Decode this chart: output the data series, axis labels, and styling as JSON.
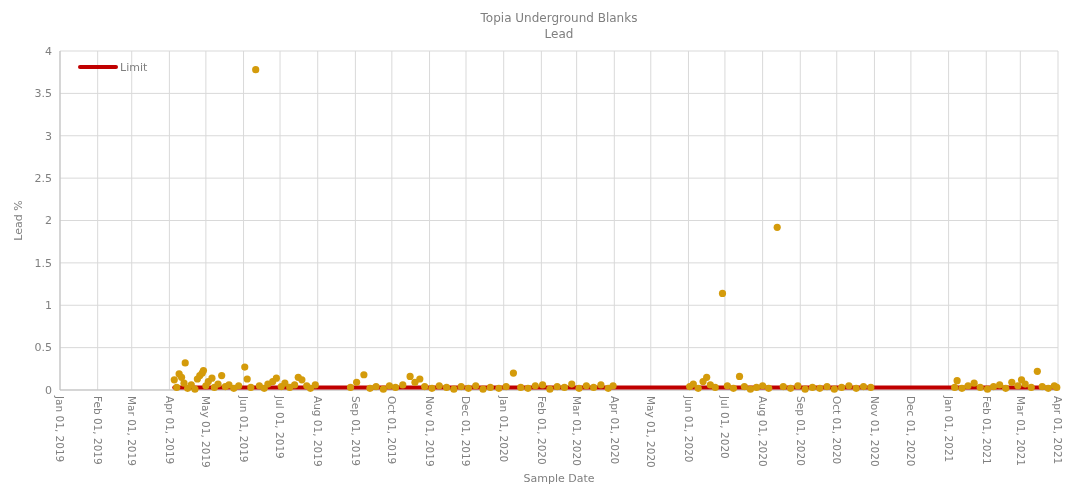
{
  "chart_data": {
    "type": "scatter",
    "title": "Topia Underground Blanks",
    "subtitle": "Lead",
    "xlabel": "Sample Date",
    "ylabel": "Lead %",
    "xlim": [
      "2019-01-01",
      "2021-04-01"
    ],
    "xticks": [
      {
        "value": "2019-01-01",
        "label": "Jan 01, 2019"
      },
      {
        "value": "2019-02-01",
        "label": "Feb 01, 2019"
      },
      {
        "value": "2019-03-01",
        "label": "Mar 01, 2019"
      },
      {
        "value": "2019-04-01",
        "label": "Apr 01, 2019"
      },
      {
        "value": "2019-05-01",
        "label": "May 01, 2019"
      },
      {
        "value": "2019-06-01",
        "label": "Jun 01, 2019"
      },
      {
        "value": "2019-07-01",
        "label": "Jul 01, 2019"
      },
      {
        "value": "2019-08-01",
        "label": "Aug 01, 2019"
      },
      {
        "value": "2019-09-01",
        "label": "Sep 01, 2019"
      },
      {
        "value": "2019-10-01",
        "label": "Oct 01, 2019"
      },
      {
        "value": "2019-11-01",
        "label": "Nov 01, 2019"
      },
      {
        "value": "2019-12-01",
        "label": "Dec 01, 2019"
      },
      {
        "value": "2020-01-01",
        "label": "Jan 01, 2020"
      },
      {
        "value": "2020-02-01",
        "label": "Feb 01, 2020"
      },
      {
        "value": "2020-03-01",
        "label": "Mar 01, 2020"
      },
      {
        "value": "2020-04-01",
        "label": "Apr 01, 2020"
      },
      {
        "value": "2020-05-01",
        "label": "May 01, 2020"
      },
      {
        "value": "2020-06-01",
        "label": "Jun 01, 2020"
      },
      {
        "value": "2020-07-01",
        "label": "Jul 01, 2020"
      },
      {
        "value": "2020-08-01",
        "label": "Aug 01, 2020"
      },
      {
        "value": "2020-09-01",
        "label": "Sep 01, 2020"
      },
      {
        "value": "2020-10-01",
        "label": "Oct 01, 2020"
      },
      {
        "value": "2020-11-01",
        "label": "Nov 01, 2020"
      },
      {
        "value": "2020-12-01",
        "label": "Dec 01, 2020"
      },
      {
        "value": "2021-01-01",
        "label": "Jan 01, 2021"
      },
      {
        "value": "2021-02-01",
        "label": "Feb 01, 2021"
      },
      {
        "value": "2021-03-01",
        "label": "Mar 01, 2021"
      },
      {
        "value": "2021-04-01",
        "label": "Apr 01, 2021"
      }
    ],
    "ylim": [
      0,
      4
    ],
    "yticks": [
      0,
      0.5,
      1,
      1.5,
      2,
      2.5,
      3,
      3.5,
      4
    ],
    "grid": true,
    "legend": "top left",
    "series": [
      {
        "name": "Limit",
        "type": "line",
        "color": "#c00000",
        "x": [
          "2019-04-05",
          "2021-03-31"
        ],
        "values": [
          0.03,
          0.03
        ]
      },
      {
        "marker": "circle",
        "color": "#d49b0b",
        "x": [
          "2019-04-05",
          "2019-04-07",
          "2019-04-09",
          "2019-04-11",
          "2019-04-13",
          "2019-04-14",
          "2019-04-16",
          "2019-04-19",
          "2019-04-22",
          "2019-04-24",
          "2019-04-26",
          "2019-04-28",
          "2019-04-29",
          "2019-05-01",
          "2019-05-03",
          "2019-05-06",
          "2019-05-08",
          "2019-05-11",
          "2019-05-14",
          "2019-05-17",
          "2019-05-20",
          "2019-05-24",
          "2019-05-28",
          "2019-06-02",
          "2019-06-04",
          "2019-06-07",
          "2019-06-11",
          "2019-06-14",
          "2019-06-18",
          "2019-06-21",
          "2019-06-25",
          "2019-06-28",
          "2019-07-02",
          "2019-07-05",
          "2019-07-09",
          "2019-07-13",
          "2019-07-16",
          "2019-07-19",
          "2019-07-23",
          "2019-07-26",
          "2019-07-30",
          "2019-08-28",
          "2019-09-02",
          "2019-09-08",
          "2019-09-13",
          "2019-09-18",
          "2019-09-24",
          "2019-09-29",
          "2019-10-04",
          "2019-10-10",
          "2019-10-16",
          "2019-10-20",
          "2019-10-24",
          "2019-10-28",
          "2019-11-03",
          "2019-11-09",
          "2019-11-15",
          "2019-11-21",
          "2019-11-27",
          "2019-12-03",
          "2019-12-09",
          "2019-12-15",
          "2019-12-21",
          "2019-12-28",
          "2020-01-03",
          "2020-01-09",
          "2020-01-15",
          "2020-01-21",
          "2020-01-27",
          "2020-02-02",
          "2020-02-08",
          "2020-02-14",
          "2020-02-20",
          "2020-02-26",
          "2020-03-03",
          "2020-03-09",
          "2020-03-15",
          "2020-03-21",
          "2020-03-27",
          "2020-03-31",
          "2020-06-02",
          "2020-06-05",
          "2020-06-09",
          "2020-06-13",
          "2020-06-16",
          "2020-06-19",
          "2020-06-23",
          "2020-06-29",
          "2020-07-03",
          "2020-07-08",
          "2020-07-13",
          "2020-07-17",
          "2020-07-22",
          "2020-07-27",
          "2020-08-01",
          "2020-08-06",
          "2020-08-13",
          "2020-08-18",
          "2020-08-24",
          "2020-08-30",
          "2020-09-05",
          "2020-09-11",
          "2020-09-17",
          "2020-09-23",
          "2020-09-29",
          "2020-10-05",
          "2020-10-11",
          "2020-10-17",
          "2020-10-23",
          "2020-10-29",
          "2021-01-06",
          "2021-01-08",
          "2021-01-12",
          "2021-01-17",
          "2021-01-22",
          "2021-01-27",
          "2021-02-02",
          "2021-02-07",
          "2021-02-12",
          "2021-02-17",
          "2021-02-22",
          "2021-02-27",
          "2021-03-02",
          "2021-03-05",
          "2021-03-10",
          "2021-03-15",
          "2021-03-19",
          "2021-03-24",
          "2021-03-29",
          "2021-03-31"
        ],
        "values": [
          0.12,
          0.03,
          0.19,
          0.15,
          0.08,
          0.32,
          0.02,
          0.06,
          0.01,
          0.13,
          0.17,
          0.2,
          0.23,
          0.05,
          0.1,
          0.14,
          0.03,
          0.07,
          0.17,
          0.04,
          0.06,
          0.02,
          0.05,
          0.27,
          0.13,
          0.03,
          3.78,
          0.05,
          0.02,
          0.07,
          0.1,
          0.14,
          0.04,
          0.08,
          0.03,
          0.06,
          0.15,
          0.12,
          0.05,
          0.02,
          0.06,
          0.03,
          0.09,
          0.18,
          0.02,
          0.04,
          0.01,
          0.05,
          0.03,
          0.06,
          0.16,
          0.09,
          0.13,
          0.04,
          0.02,
          0.05,
          0.03,
          0.01,
          0.04,
          0.02,
          0.05,
          0.01,
          0.03,
          0.02,
          0.04,
          0.2,
          0.03,
          0.02,
          0.05,
          0.06,
          0.01,
          0.04,
          0.03,
          0.07,
          0.02,
          0.05,
          0.03,
          0.06,
          0.02,
          0.05,
          0.04,
          0.07,
          0.02,
          0.1,
          0.15,
          0.06,
          0.03,
          1.14,
          0.05,
          0.02,
          0.16,
          0.04,
          0.01,
          0.03,
          0.05,
          0.02,
          1.92,
          0.04,
          0.02,
          0.05,
          0.01,
          0.03,
          0.02,
          0.04,
          0.01,
          0.03,
          0.05,
          0.02,
          0.04,
          0.03,
          0.03,
          0.11,
          0.02,
          0.05,
          0.08,
          0.03,
          0.01,
          0.04,
          0.06,
          0.02,
          0.09,
          0.05,
          0.12,
          0.07,
          0.03,
          0.22,
          0.04,
          0.02,
          0.05,
          0.03
        ]
      }
    ]
  }
}
